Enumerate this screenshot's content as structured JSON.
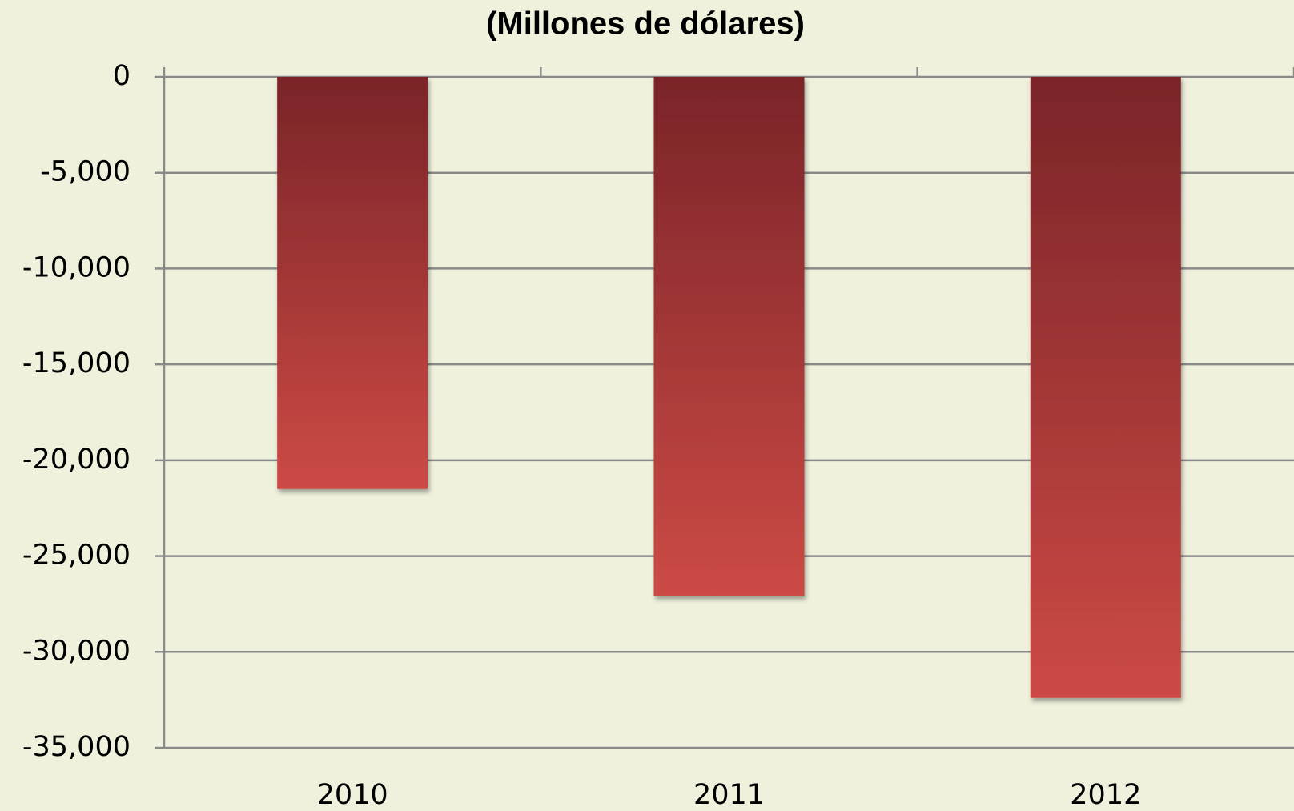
{
  "chart_data": {
    "type": "bar",
    "title": "(Millones de dólares)",
    "categories": [
      "2010",
      "2011",
      "2012"
    ],
    "values": [
      -21500,
      -27100,
      -32400
    ],
    "color": "#cc4a45",
    "color_top": "#7a2428",
    "ylim": [
      -35000,
      0
    ],
    "yticks": [
      0,
      {
        "value": -5000,
        "label": "-5,000"
      },
      {
        "value": -10000,
        "label": "-10,000"
      },
      {
        "value": -15000,
        "label": "-15,000"
      },
      {
        "value": -20000,
        "label": "-20,000"
      },
      {
        "value": -25000,
        "label": "-25,000"
      },
      {
        "value": -30000,
        "label": "-30,000"
      },
      {
        "value": -35000,
        "label": "-35,000"
      }
    ],
    "grid": true
  }
}
